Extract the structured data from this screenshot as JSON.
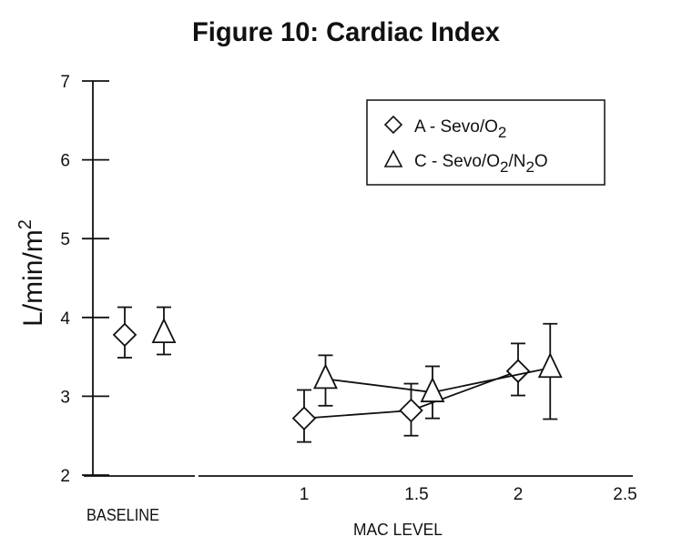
{
  "chart_data": {
    "type": "line",
    "title": "Figure 10: Cardiac Index",
    "ylabel": "L/min/m",
    "ylabel_sup": "2",
    "xlabel": "MAC LEVEL",
    "baseline_label": "BASELINE",
    "ylim": [
      2,
      7
    ],
    "yticks": [
      "2",
      "3",
      "4",
      "5",
      "6",
      "7"
    ],
    "xlim": [
      0.6,
      2.5
    ],
    "xticks": [
      "1",
      "1.5",
      "2",
      "2.5"
    ],
    "grid": false,
    "legend_placement": "top-right",
    "series": [
      {
        "name": "A - Sevo/O2",
        "legend_parts": [
          "A - Sevo/O",
          "2",
          ""
        ],
        "marker": "diamond",
        "baseline": {
          "y": 3.78,
          "err_hi": 4.13,
          "err_lo": 3.49
        },
        "points": [
          {
            "x": 1.0,
            "y": 2.72,
            "err_hi": 3.08,
            "err_lo": 2.42
          },
          {
            "x": 1.5,
            "y": 2.82,
            "err_hi": 3.16,
            "err_lo": 2.5
          },
          {
            "x": 2.0,
            "y": 3.32,
            "err_hi": 3.67,
            "err_lo": 3.01
          }
        ]
      },
      {
        "name": "C - Sevo/O2/N2O",
        "legend_parts": [
          "C - Sevo/O",
          "2",
          "/N",
          "2",
          "O"
        ],
        "marker": "triangle",
        "baseline": {
          "y": 3.8,
          "err_hi": 4.13,
          "err_lo": 3.53
        },
        "points": [
          {
            "x": 1.1,
            "y": 3.22,
            "err_hi": 3.52,
            "err_lo": 2.88
          },
          {
            "x": 1.6,
            "y": 3.05,
            "err_hi": 3.38,
            "err_lo": 2.72
          },
          {
            "x": 2.15,
            "y": 3.36,
            "err_hi": 3.92,
            "err_lo": 2.71
          }
        ]
      }
    ]
  }
}
